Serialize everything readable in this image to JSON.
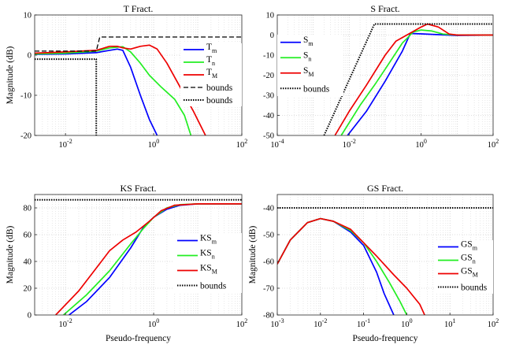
{
  "colors": {
    "m": "#0000ff",
    "n": "#22ee22",
    "M": "#ee0000",
    "bounds": "#000000"
  },
  "chart_data": [
    {
      "type": "line",
      "title": "T Fract.",
      "xlabel": "",
      "ylabel": "Magnitude (dB)",
      "xscale": "log",
      "xlim": [
        0.002,
        100
      ],
      "ylim": [
        -20,
        10
      ],
      "xticks": [
        {
          "v": 0.01,
          "b": "10",
          "e": "-2"
        },
        {
          "v": 1,
          "b": "10",
          "e": "0"
        },
        {
          "v": 100,
          "b": "10",
          "e": "2"
        }
      ],
      "yticks": [
        -20,
        -10,
        0,
        10
      ],
      "legend": "right",
      "series": [
        {
          "base": "T",
          "sub": "m",
          "color": "#0000ff",
          "style": "solid",
          "x": [
            0.002,
            0.01,
            0.05,
            0.1,
            0.15,
            0.2,
            0.3,
            0.5,
            0.8,
            1.2
          ],
          "y": [
            0.2,
            0.3,
            0.6,
            1.2,
            1.5,
            1.2,
            -3,
            -10,
            -16,
            -20
          ]
        },
        {
          "base": "T",
          "sub": "n",
          "color": "#22ee22",
          "style": "solid",
          "x": [
            0.002,
            0.01,
            0.05,
            0.1,
            0.2,
            0.3,
            0.5,
            0.8,
            1.5,
            3,
            5,
            7
          ],
          "y": [
            0.3,
            0.5,
            1,
            1.8,
            2.1,
            0.8,
            -2,
            -5,
            -8,
            -11,
            -15,
            -20
          ]
        },
        {
          "base": "T",
          "sub": "M",
          "color": "#ee0000",
          "style": "solid",
          "x": [
            0.002,
            0.01,
            0.05,
            0.1,
            0.15,
            0.2,
            0.3,
            0.5,
            0.8,
            1.2,
            2,
            4,
            8,
            15
          ],
          "y": [
            0.5,
            0.8,
            1.2,
            2.2,
            2.2,
            1.8,
            1.5,
            2.2,
            2.5,
            1.5,
            -2,
            -8,
            -14,
            -20
          ]
        },
        {
          "base": "bounds",
          "sub": "",
          "color": "#000000",
          "style": "dashed",
          "x": [
            0.002,
            0.05,
            0.06,
            100
          ],
          "y": [
            1,
            1,
            4.5,
            4.5
          ]
        },
        {
          "base": "bounds",
          "sub": "",
          "color": "#000000",
          "style": "dotted",
          "x": [
            0.002,
            0.05,
            0.05
          ],
          "y": [
            -1,
            -1,
            -20
          ]
        }
      ]
    },
    {
      "type": "line",
      "title": "S Fract.",
      "xlabel": "",
      "ylabel": "",
      "xscale": "log",
      "xlim": [
        0.0001,
        100
      ],
      "ylim": [
        -50,
        10
      ],
      "xticks": [
        {
          "v": 0.0001,
          "b": "10",
          "e": "-4"
        },
        {
          "v": 0.01,
          "b": "10",
          "e": "-2"
        },
        {
          "v": 1,
          "b": "10",
          "e": "0"
        },
        {
          "v": 100,
          "b": "10",
          "e": "2"
        }
      ],
      "yticks": [
        -50,
        -40,
        -30,
        -20,
        -10,
        0,
        10
      ],
      "legend": "left",
      "series": [
        {
          "base": "S",
          "sub": "m",
          "color": "#0000ff",
          "style": "solid",
          "x": [
            0.009,
            0.03,
            0.1,
            0.3,
            0.5,
            1,
            3,
            10,
            100
          ],
          "y": [
            -50,
            -38,
            -23,
            -8,
            0.8,
            0.6,
            0.2,
            -0.2,
            0
          ]
        },
        {
          "base": "S",
          "sub": "n",
          "color": "#22ee22",
          "style": "solid",
          "x": [
            0.006,
            0.02,
            0.05,
            0.1,
            0.3,
            0.6,
            1,
            2,
            4,
            10,
            100
          ],
          "y": [
            -50,
            -35,
            -25,
            -17,
            -4,
            1.5,
            2.5,
            2,
            0.5,
            0,
            0
          ]
        },
        {
          "base": "S",
          "sub": "M",
          "color": "#ee0000",
          "style": "solid",
          "x": [
            0.004,
            0.01,
            0.03,
            0.1,
            0.2,
            0.5,
            1,
            1.5,
            3,
            6,
            10,
            100
          ],
          "y": [
            -50,
            -38,
            -25,
            -10,
            -3,
            1,
            4,
            5.5,
            4,
            0.5,
            0,
            0
          ]
        },
        {
          "base": "bounds",
          "sub": "",
          "color": "#000000",
          "style": "dotted",
          "x": [
            0.002,
            0.05,
            100
          ],
          "y": [
            -50,
            5.5,
            5.5
          ]
        }
      ]
    },
    {
      "type": "line",
      "title": "KS Fract.",
      "xlabel": "Pseudo-frequency",
      "ylabel": "Magnitude (dB)",
      "xscale": "log",
      "xlim": [
        0.002,
        100
      ],
      "ylim": [
        0,
        90
      ],
      "xticks": [
        {
          "v": 0.01,
          "b": "10",
          "e": "-2"
        },
        {
          "v": 1,
          "b": "10",
          "e": "0"
        },
        {
          "v": 100,
          "b": "10",
          "e": "2"
        }
      ],
      "yticks": [
        0,
        20,
        40,
        60,
        80
      ],
      "legend": "right",
      "series": [
        {
          "base": "KS",
          "sub": "m",
          "color": "#0000ff",
          "style": "solid",
          "x": [
            0.012,
            0.03,
            0.1,
            0.3,
            0.6,
            1,
            2,
            4,
            10,
            100
          ],
          "y": [
            0,
            10,
            28,
            50,
            66,
            73,
            79,
            82,
            83,
            83
          ]
        },
        {
          "base": "KS",
          "sub": "n",
          "color": "#22ee22",
          "style": "solid",
          "x": [
            0.009,
            0.03,
            0.1,
            0.3,
            0.6,
            1,
            2,
            4,
            10,
            100
          ],
          "y": [
            0,
            15,
            33,
            53,
            65,
            73,
            80,
            82.5,
            83,
            83
          ]
        },
        {
          "base": "KS",
          "sub": "M",
          "color": "#ee0000",
          "style": "solid",
          "x": [
            0.006,
            0.02,
            0.05,
            0.1,
            0.2,
            0.4,
            0.8,
            1.5,
            3,
            10,
            100
          ],
          "y": [
            0,
            18,
            35,
            48,
            56,
            62,
            70,
            78,
            82,
            83,
            83
          ]
        },
        {
          "base": "bounds",
          "sub": "",
          "color": "#000000",
          "style": "dotted",
          "x": [
            0.002,
            100
          ],
          "y": [
            86,
            86
          ]
        }
      ]
    },
    {
      "type": "line",
      "title": "GS Fract.",
      "xlabel": "Pseudo-frequency",
      "ylabel": "Magnitude (dB)",
      "xscale": "log",
      "xlim": [
        0.001,
        100
      ],
      "ylim": [
        -80,
        -35
      ],
      "xticks": [
        {
          "v": 0.001,
          "b": "10",
          "e": "-3"
        },
        {
          "v": 0.01,
          "b": "10",
          "e": "-2"
        },
        {
          "v": 0.1,
          "b": "10",
          "e": "-1"
        },
        {
          "v": 1,
          "b": "10",
          "e": "0"
        },
        {
          "v": 10,
          "b": "10",
          "e": "1"
        },
        {
          "v": 100,
          "b": "10",
          "e": "2"
        }
      ],
      "yticks": [
        -80,
        -70,
        -60,
        -50,
        -40
      ],
      "legend": "right",
      "series": [
        {
          "base": "GS",
          "sub": "m",
          "color": "#0000ff",
          "style": "solid",
          "x": [
            0.001,
            0.002,
            0.005,
            0.01,
            0.02,
            0.05,
            0.1,
            0.2,
            0.3,
            0.5
          ],
          "y": [
            -61,
            -52,
            -45.5,
            -44,
            -45,
            -49,
            -54,
            -64,
            -72,
            -80
          ]
        },
        {
          "base": "GS",
          "sub": "n",
          "color": "#22ee22",
          "style": "solid",
          "x": [
            0.001,
            0.002,
            0.005,
            0.01,
            0.02,
            0.05,
            0.1,
            0.2,
            0.4,
            0.7,
            1
          ],
          "y": [
            -61,
            -52,
            -45.5,
            -44,
            -45,
            -48.5,
            -53,
            -60,
            -68,
            -75,
            -80
          ]
        },
        {
          "base": "GS",
          "sub": "M",
          "color": "#ee0000",
          "style": "solid",
          "x": [
            0.001,
            0.002,
            0.005,
            0.01,
            0.02,
            0.05,
            0.1,
            0.2,
            0.5,
            1,
            2,
            2.6
          ],
          "y": [
            -61,
            -52,
            -45.5,
            -44,
            -45,
            -48,
            -53,
            -58,
            -65,
            -70,
            -76,
            -80
          ]
        },
        {
          "base": "bounds",
          "sub": "",
          "color": "#000000",
          "style": "dotted",
          "x": [
            0.001,
            100
          ],
          "y": [
            -40,
            -40
          ]
        }
      ]
    }
  ]
}
